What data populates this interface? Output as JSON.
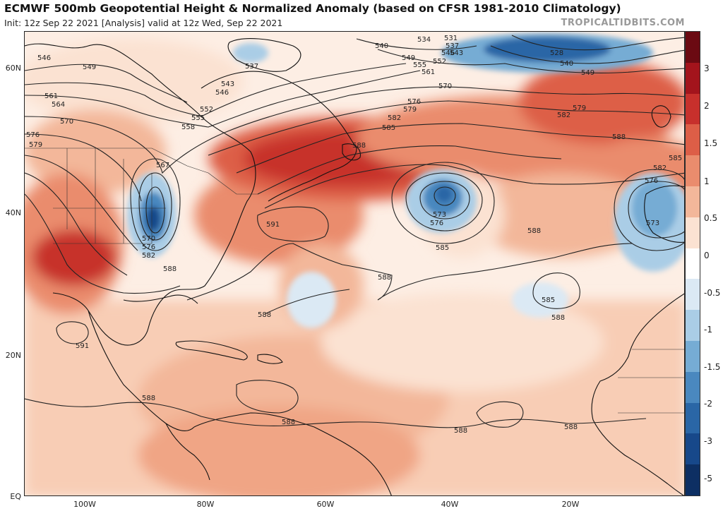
{
  "header": {
    "title": "ECMWF 500mb Geopotential Height & Normalized Anomaly (based on CFSR 1981-2010 Climatology)",
    "subtitle": "Init: 12z Sep 22 2021   [Analysis]   valid at 12z Wed, Sep 22 2021",
    "brand": "TROPICALTIDBITS.COM"
  },
  "axes": {
    "lat_labels": [
      "60N",
      "40N",
      "20N",
      "EQ"
    ],
    "lon_labels": [
      "100W",
      "80W",
      "60W",
      "40W",
      "20W"
    ]
  },
  "colorbar": {
    "labels": [
      "3",
      "2",
      "1.5",
      "1",
      "0.5",
      "0",
      "-0.5",
      "-1",
      "-1.5",
      "-2",
      "-3",
      "-5"
    ],
    "colors": [
      "#6b0a12",
      "#a3141c",
      "#c7302c",
      "#dd5e47",
      "#ea8c6d",
      "#f3b79a",
      "#fbe2d2",
      "#ffffff",
      "#dbe9f4",
      "#aacde6",
      "#76acd4",
      "#4a88bf",
      "#2a66a6",
      "#17488a",
      "#0d2f63"
    ]
  },
  "contours": {
    "labels": [
      {
        "text": "546"
      },
      {
        "text": "549"
      },
      {
        "text": "561"
      },
      {
        "text": "564"
      },
      {
        "text": "570"
      },
      {
        "text": "576"
      },
      {
        "text": "579"
      },
      {
        "text": "537"
      },
      {
        "text": "543"
      },
      {
        "text": "546"
      },
      {
        "text": "552"
      },
      {
        "text": "555"
      },
      {
        "text": "558"
      },
      {
        "text": "567"
      },
      {
        "text": "534"
      },
      {
        "text": "531"
      },
      {
        "text": "540"
      },
      {
        "text": "537"
      },
      {
        "text": "546"
      },
      {
        "text": "549"
      },
      {
        "text": "543"
      },
      {
        "text": "552"
      },
      {
        "text": "555"
      },
      {
        "text": "561"
      },
      {
        "text": "528"
      },
      {
        "text": "540"
      },
      {
        "text": "549"
      },
      {
        "text": "570"
      },
      {
        "text": "576"
      },
      {
        "text": "579"
      },
      {
        "text": "582"
      },
      {
        "text": "585"
      },
      {
        "text": "588"
      },
      {
        "text": "582"
      },
      {
        "text": "579"
      },
      {
        "text": "588"
      },
      {
        "text": "582"
      },
      {
        "text": "585"
      },
      {
        "text": "576"
      },
      {
        "text": "573"
      },
      {
        "text": "591"
      },
      {
        "text": "573"
      },
      {
        "text": "576"
      },
      {
        "text": "585"
      },
      {
        "text": "570"
      },
      {
        "text": "576"
      },
      {
        "text": "582"
      },
      {
        "text": "588"
      },
      {
        "text": "588"
      },
      {
        "text": "588"
      },
      {
        "text": "588"
      },
      {
        "text": "585"
      },
      {
        "text": "588"
      },
      {
        "text": "591"
      },
      {
        "text": "588"
      },
      {
        "text": "588"
      },
      {
        "text": "588"
      },
      {
        "text": "588"
      }
    ]
  }
}
